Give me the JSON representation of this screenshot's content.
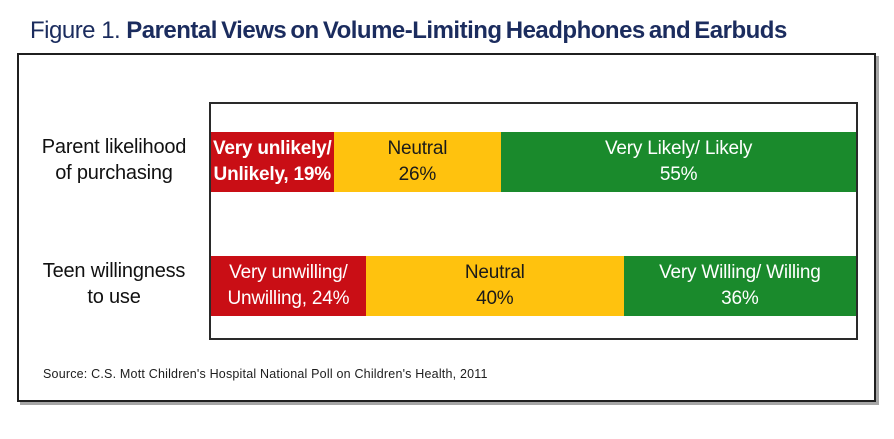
{
  "figure": {
    "label": "Figure 1.",
    "title": "Parental Views on Volume-Limiting Headphones and Earbuds"
  },
  "source": "Source: C.S. Mott Children's Hospital National Poll on Children's Health, 2011",
  "colors": {
    "negative_red": "#C90E15",
    "neutral_yellow": "#FFC20E",
    "positive_green": "#1A8A2C",
    "title_navy": "#1B2C5E",
    "frame_border": "#1f1f1f"
  },
  "chart_data": {
    "type": "bar",
    "variant": "horizontal-stacked",
    "title": "Parental Views on Volume-Limiting Headphones and Earbuds",
    "xlabel": "",
    "ylabel": "",
    "xlim": [
      0,
      100
    ],
    "grid": false,
    "legend_position": "none",
    "categories": [
      "Parent likelihood of purchasing",
      "Teen willingness to use"
    ],
    "series": [
      {
        "name": "Very unlikely/unwilling",
        "values": [
          19,
          24
        ]
      },
      {
        "name": "Neutral",
        "values": [
          26,
          40
        ]
      },
      {
        "name": "Very likely/willing",
        "values": [
          55,
          36
        ]
      }
    ],
    "rows": [
      {
        "label_lines": [
          "Parent likelihood",
          "of purchasing"
        ],
        "segments": [
          {
            "name": "negative",
            "label_lines": [
              "Very unlikely/",
              "Unlikely, 19%"
            ],
            "value": 19,
            "color": "#C90E15",
            "text_color": "#FFFFFF",
            "bold": true
          },
          {
            "name": "neutral",
            "label_lines": [
              "Neutral",
              "26%"
            ],
            "value": 26,
            "color": "#FFC20E",
            "text_color": "#1A1A1A",
            "bold": false
          },
          {
            "name": "positive",
            "label_lines": [
              "Very Likely/ Likely",
              "55%"
            ],
            "value": 55,
            "color": "#1A8A2C",
            "text_color": "#FFFFFF",
            "bold": false
          }
        ]
      },
      {
        "label_lines": [
          "Teen willingness",
          "to use"
        ],
        "segments": [
          {
            "name": "negative",
            "label_lines": [
              "Very unwilling/",
              "Unwilling, 24%"
            ],
            "value": 24,
            "color": "#C90E15",
            "text_color": "#FFFFFF",
            "bold": false
          },
          {
            "name": "neutral",
            "label_lines": [
              "Neutral",
              "40%"
            ],
            "value": 40,
            "color": "#FFC20E",
            "text_color": "#1A1A1A",
            "bold": false
          },
          {
            "name": "positive",
            "label_lines": [
              "Very Willing/ Willing",
              "36%"
            ],
            "value": 36,
            "color": "#1A8A2C",
            "text_color": "#FFFFFF",
            "bold": false
          }
        ]
      }
    ]
  }
}
